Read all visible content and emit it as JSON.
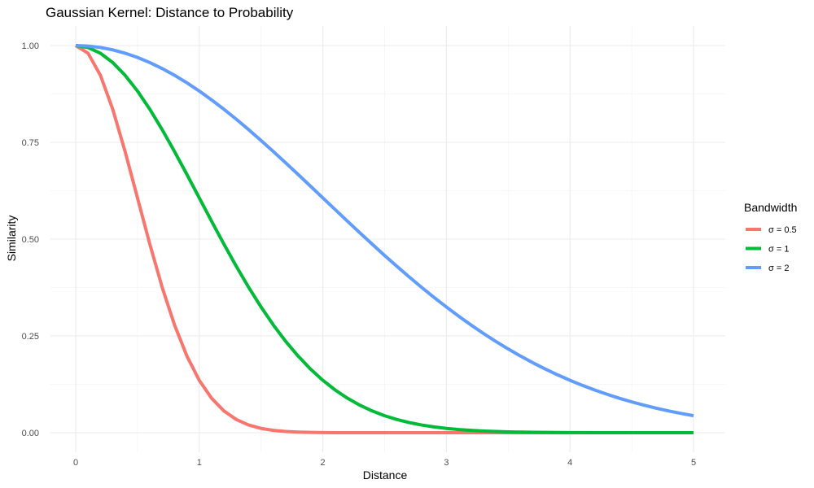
{
  "chart_data": {
    "type": "line",
    "title": "Gaussian Kernel: Distance to Probability",
    "xlabel": "Distance",
    "ylabel": "Similarity",
    "xlim": [
      0,
      5
    ],
    "ylim": [
      0,
      1
    ],
    "x_ticks": [
      0,
      1,
      2,
      3,
      4,
      5
    ],
    "x_tick_labels": [
      "0",
      "1",
      "2",
      "3",
      "4",
      "5"
    ],
    "y_ticks": [
      0,
      0.25,
      0.5,
      0.75,
      1
    ],
    "y_tick_labels": [
      "0.00",
      "0.25",
      "0.50",
      "0.75",
      "1.00"
    ],
    "grid": true,
    "legend": {
      "title": "Bandwidth",
      "position": "right"
    },
    "x": [
      0,
      0.1,
      0.2,
      0.3,
      0.4,
      0.5,
      0.6,
      0.7,
      0.8,
      0.9,
      1,
      1.1,
      1.2,
      1.3,
      1.4,
      1.5,
      1.6,
      1.7,
      1.8,
      1.9,
      2,
      2.1,
      2.2,
      2.3,
      2.4,
      2.5,
      2.6,
      2.7,
      2.8,
      2.9,
      3,
      3.1,
      3.2,
      3.3,
      3.4,
      3.5,
      3.6,
      3.7,
      3.8,
      3.9,
      4,
      4.1,
      4.2,
      4.3,
      4.4,
      4.5,
      4.6,
      4.7,
      4.8,
      4.9,
      5
    ],
    "series": [
      {
        "name": "σ = 0.5",
        "color": "#F8766D",
        "values": [
          1,
          0.9802,
          0.9231,
          0.8353,
          0.7261,
          0.6065,
          0.4868,
          0.3753,
          0.278,
          0.1979,
          0.1353,
          0.0889,
          0.0561,
          0.034,
          0.0198,
          0.0111,
          0.006,
          0.0031,
          0.0015,
          0.0007,
          0.0003,
          0.0001,
          0.0001,
          0,
          0,
          0,
          0,
          0,
          0,
          0,
          0,
          0,
          0,
          0,
          0,
          0,
          0,
          0,
          0,
          0,
          0,
          0,
          0,
          0,
          0,
          0,
          0,
          0,
          0,
          0,
          0
        ]
      },
      {
        "name": "σ = 1",
        "color": "#00BA38",
        "values": [
          1,
          0.995,
          0.9802,
          0.956,
          0.9231,
          0.8825,
          0.8353,
          0.7827,
          0.7261,
          0.667,
          0.6065,
          0.5461,
          0.4868,
          0.4296,
          0.3753,
          0.3247,
          0.278,
          0.2357,
          0.1979,
          0.1645,
          0.1353,
          0.1103,
          0.0889,
          0.071,
          0.0561,
          0.0439,
          0.034,
          0.0261,
          0.0198,
          0.0149,
          0.0111,
          0.0082,
          0.006,
          0.0043,
          0.0031,
          0.0022,
          0.0015,
          0.0011,
          0.0007,
          0.0005,
          0.0003,
          0.0002,
          0.0001,
          0.0001,
          0.0001,
          0,
          0,
          0,
          0,
          0,
          0
        ]
      },
      {
        "name": "σ = 2",
        "color": "#619CFF",
        "values": [
          1,
          0.9988,
          0.995,
          0.9888,
          0.9802,
          0.9692,
          0.956,
          0.9406,
          0.9231,
          0.9037,
          0.8825,
          0.8596,
          0.8353,
          0.8096,
          0.7827,
          0.7548,
          0.7261,
          0.6968,
          0.667,
          0.6368,
          0.6065,
          0.5762,
          0.5461,
          0.5162,
          0.4868,
          0.4578,
          0.4296,
          0.402,
          0.3753,
          0.3495,
          0.3247,
          0.3008,
          0.278,
          0.2563,
          0.2357,
          0.2163,
          0.1979,
          0.1806,
          0.1645,
          0.1494,
          0.1353,
          0.1223,
          0.1103,
          0.0992,
          0.0889,
          0.0796,
          0.071,
          0.0632,
          0.0561,
          0.0497,
          0.0439
        ]
      }
    ]
  }
}
